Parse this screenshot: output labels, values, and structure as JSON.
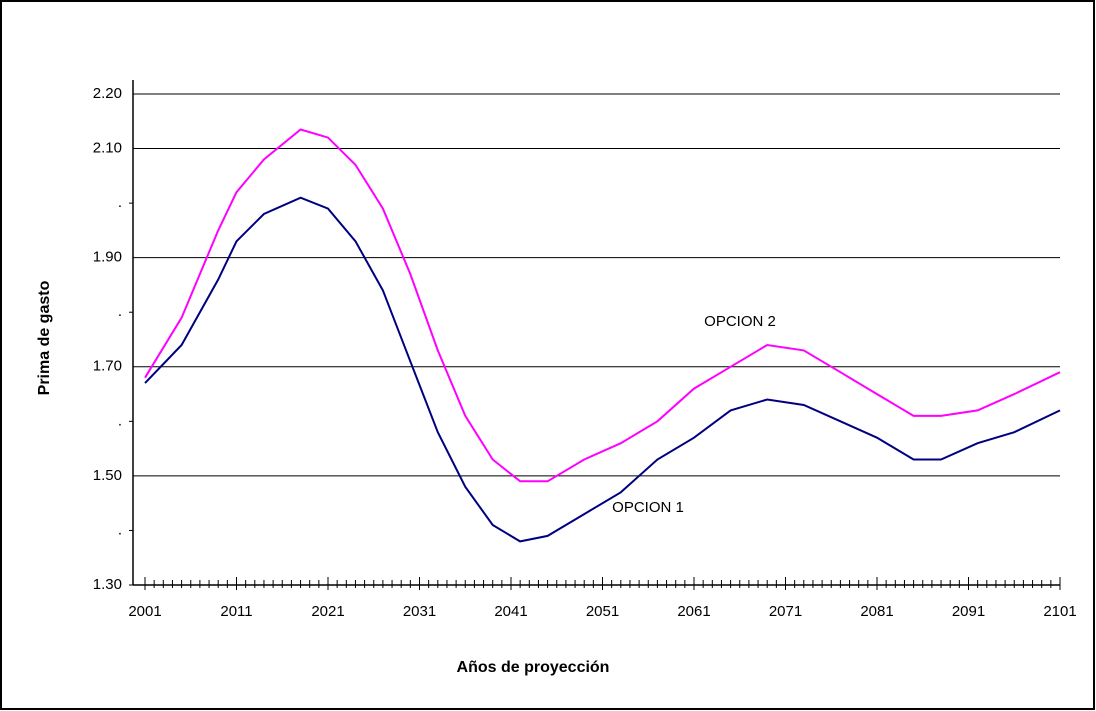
{
  "chart_data": {
    "type": "line",
    "x_label": "Años de proyección",
    "y_label": "Prima de gasto",
    "x": [
      2001,
      2005,
      2009,
      2011,
      2014,
      2018,
      2021,
      2024,
      2027,
      2030,
      2033,
      2036,
      2039,
      2042,
      2045,
      2049,
      2053,
      2057,
      2061,
      2065,
      2069,
      2073,
      2077,
      2081,
      2085,
      2088,
      2092,
      2096,
      2101
    ],
    "series": [
      {
        "name": "OPCION 1",
        "color": "#000080",
        "values": [
          1.67,
          1.74,
          1.86,
          1.93,
          1.98,
          2.01,
          1.99,
          1.93,
          1.84,
          1.71,
          1.58,
          1.48,
          1.41,
          1.38,
          1.39,
          1.43,
          1.47,
          1.53,
          1.57,
          1.62,
          1.64,
          1.63,
          1.6,
          1.57,
          1.53,
          1.53,
          1.56,
          1.58,
          1.62
        ]
      },
      {
        "name": "OPCION 2",
        "color": "#ff00ff",
        "values": [
          1.68,
          1.79,
          1.95,
          2.02,
          2.08,
          2.135,
          2.12,
          2.07,
          1.99,
          1.87,
          1.73,
          1.61,
          1.53,
          1.49,
          1.49,
          1.53,
          1.56,
          1.6,
          1.66,
          1.7,
          1.74,
          1.73,
          1.69,
          1.65,
          1.61,
          1.61,
          1.62,
          1.65,
          1.69
        ]
      }
    ],
    "xlim": [
      2001,
      2101
    ],
    "xticks": [
      2001,
      2011,
      2021,
      2031,
      2041,
      2051,
      2061,
      2071,
      2081,
      2091,
      2101
    ],
    "ylim": [
      1.3,
      2.2
    ],
    "yticks": [
      {
        "value": 1.3,
        "label": "1.30"
      },
      {
        "value": 1.4,
        "label": "."
      },
      {
        "value": 1.5,
        "label": "1.50"
      },
      {
        "value": 1.6,
        "label": "."
      },
      {
        "value": 1.7,
        "label": "1.70"
      },
      {
        "value": 1.8,
        "label": "."
      },
      {
        "value": 1.9,
        "label": "1.90"
      },
      {
        "value": 2.0,
        "label": "."
      },
      {
        "value": 2.1,
        "label": "2.10"
      },
      {
        "value": 2.2,
        "label": "2.20"
      }
    ],
    "grid": true
  }
}
